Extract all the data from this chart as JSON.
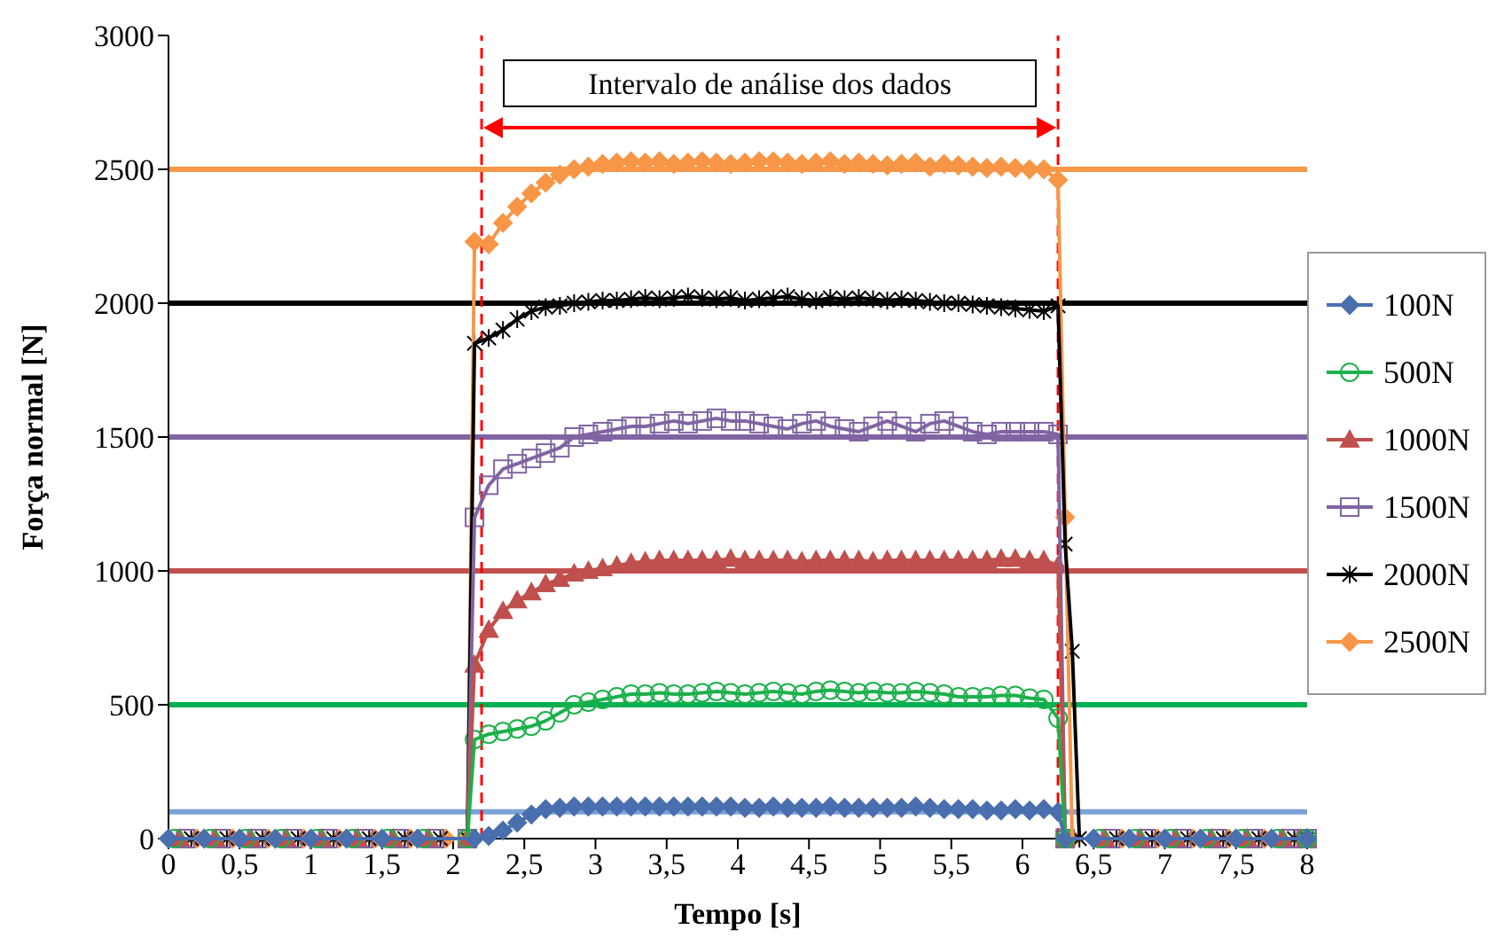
{
  "chart_data": {
    "type": "line",
    "xlabel": "Tempo [s]",
    "ylabel": "Força normal [N]",
    "annotations": [
      "Intervalo de análise dos dados"
    ],
    "series": [
      {
        "name": "100N",
        "color": "#4a6fae",
        "marker": "diamond",
        "x": [
          0,
          0.25,
          0.5,
          0.75,
          1,
          1.25,
          1.5,
          1.75,
          2.15,
          2.25,
          2.35,
          2.45,
          2.55,
          2.65,
          2.75,
          2.85,
          2.95,
          3.05,
          3.15,
          3.25,
          3.35,
          3.45,
          3.55,
          3.65,
          3.75,
          3.85,
          3.95,
          4.05,
          4.15,
          4.25,
          4.35,
          4.45,
          4.55,
          4.65,
          4.75,
          4.85,
          4.95,
          5.05,
          5.15,
          5.25,
          5.35,
          5.45,
          5.55,
          5.65,
          5.75,
          5.85,
          5.95,
          6.05,
          6.15,
          6.25,
          6.3,
          6.5,
          6.75,
          7,
          7.25,
          7.5,
          7.75,
          8
        ],
        "values": [
          0,
          0,
          0,
          0,
          0,
          0,
          0,
          0,
          0,
          10,
          30,
          60,
          90,
          110,
          115,
          120,
          120,
          120,
          120,
          120,
          120,
          120,
          120,
          120,
          120,
          120,
          120,
          115,
          115,
          120,
          115,
          115,
          115,
          120,
          115,
          115,
          115,
          115,
          115,
          120,
          115,
          110,
          110,
          110,
          105,
          105,
          110,
          105,
          110,
          100,
          0,
          0,
          0,
          0,
          0,
          0,
          0,
          0
        ]
      },
      {
        "name": "500N",
        "color": "#1db04a",
        "marker": "circle",
        "x": [
          0.04,
          0.29,
          0.54,
          0.79,
          1.04,
          1.29,
          1.54,
          1.79,
          2.1,
          2.15,
          2.25,
          2.35,
          2.45,
          2.55,
          2.65,
          2.75,
          2.85,
          2.95,
          3.05,
          3.15,
          3.25,
          3.35,
          3.45,
          3.55,
          3.65,
          3.75,
          3.85,
          3.95,
          4.05,
          4.15,
          4.25,
          4.35,
          4.45,
          4.55,
          4.65,
          4.75,
          4.85,
          4.95,
          5.05,
          5.15,
          5.25,
          5.35,
          5.45,
          5.55,
          5.65,
          5.75,
          5.85,
          5.95,
          6.05,
          6.15,
          6.25,
          6.3,
          6.54,
          6.79,
          7.04,
          7.29,
          7.54,
          7.79,
          8
        ],
        "values": [
          0,
          0,
          0,
          0,
          0,
          0,
          0,
          0,
          0,
          370,
          390,
          400,
          410,
          420,
          440,
          470,
          500,
          510,
          520,
          530,
          540,
          540,
          545,
          540,
          540,
          545,
          550,
          545,
          540,
          545,
          550,
          545,
          540,
          550,
          555,
          550,
          545,
          550,
          545,
          545,
          550,
          545,
          540,
          530,
          530,
          530,
          535,
          535,
          525,
          520,
          450,
          0,
          0,
          0,
          0,
          0,
          0,
          0,
          0
        ]
      },
      {
        "name": "1000N",
        "color": "#c0504d",
        "marker": "triangle",
        "x": [
          0.08,
          0.33,
          0.58,
          0.83,
          1.08,
          1.33,
          1.58,
          1.83,
          2.1,
          2.15,
          2.25,
          2.35,
          2.45,
          2.55,
          2.65,
          2.75,
          2.85,
          2.95,
          3.05,
          3.15,
          3.25,
          3.35,
          3.45,
          3.55,
          3.65,
          3.75,
          3.85,
          3.95,
          4.05,
          4.15,
          4.25,
          4.35,
          4.45,
          4.55,
          4.65,
          4.75,
          4.85,
          4.95,
          5.05,
          5.15,
          5.25,
          5.35,
          5.45,
          5.55,
          5.65,
          5.75,
          5.85,
          5.95,
          6.05,
          6.15,
          6.25,
          6.3,
          6.58,
          6.83,
          7.08,
          7.33,
          7.58,
          7.83,
          8
        ],
        "values": [
          0,
          0,
          0,
          0,
          0,
          0,
          0,
          0,
          0,
          650,
          780,
          850,
          890,
          920,
          950,
          970,
          990,
          1000,
          1010,
          1020,
          1030,
          1035,
          1040,
          1040,
          1040,
          1040,
          1040,
          1045,
          1040,
          1040,
          1040,
          1040,
          1035,
          1040,
          1040,
          1040,
          1040,
          1035,
          1040,
          1040,
          1040,
          1040,
          1040,
          1040,
          1040,
          1040,
          1045,
          1045,
          1040,
          1040,
          1020,
          0,
          0,
          0,
          0,
          0,
          0,
          0,
          0
        ]
      },
      {
        "name": "1500N",
        "color": "#8064a2",
        "marker": "square",
        "x": [
          0.12,
          0.37,
          0.62,
          0.87,
          1.12,
          1.37,
          1.62,
          1.87,
          2.1,
          2.15,
          2.25,
          2.35,
          2.45,
          2.55,
          2.65,
          2.75,
          2.85,
          2.95,
          3.05,
          3.15,
          3.25,
          3.35,
          3.45,
          3.55,
          3.65,
          3.75,
          3.85,
          3.95,
          4.05,
          4.15,
          4.25,
          4.35,
          4.45,
          4.55,
          4.65,
          4.75,
          4.85,
          4.95,
          5.05,
          5.15,
          5.25,
          5.35,
          5.45,
          5.55,
          5.65,
          5.75,
          5.85,
          5.95,
          6.05,
          6.15,
          6.25,
          6.3,
          6.62,
          6.87,
          7.12,
          7.37,
          7.62,
          7.87,
          8
        ],
        "values": [
          0,
          0,
          0,
          0,
          0,
          0,
          0,
          0,
          0,
          1200,
          1320,
          1380,
          1400,
          1420,
          1440,
          1460,
          1500,
          1510,
          1520,
          1530,
          1540,
          1540,
          1550,
          1560,
          1550,
          1560,
          1570,
          1560,
          1560,
          1550,
          1540,
          1530,
          1550,
          1560,
          1540,
          1530,
          1520,
          1540,
          1560,
          1540,
          1520,
          1550,
          1560,
          1540,
          1520,
          1510,
          1520,
          1520,
          1520,
          1520,
          1510,
          0,
          0,
          0,
          0,
          0,
          0,
          0,
          0
        ]
      },
      {
        "name": "2000N",
        "color": "#000000",
        "marker": "cross",
        "x": [
          0.16,
          0.41,
          0.66,
          0.91,
          1.16,
          1.41,
          1.66,
          1.91,
          2.1,
          2.15,
          2.25,
          2.35,
          2.45,
          2.55,
          2.65,
          2.75,
          2.85,
          2.95,
          3.05,
          3.15,
          3.25,
          3.35,
          3.45,
          3.55,
          3.65,
          3.75,
          3.85,
          3.95,
          4.05,
          4.15,
          4.25,
          4.35,
          4.45,
          4.55,
          4.65,
          4.75,
          4.85,
          4.95,
          5.05,
          5.15,
          5.25,
          5.35,
          5.45,
          5.55,
          5.65,
          5.75,
          5.85,
          5.95,
          6.05,
          6.15,
          6.25,
          6.3,
          6.35,
          6.4,
          6.66,
          6.91,
          7.16,
          7.41,
          7.66,
          7.91,
          8
        ],
        "values": [
          0,
          0,
          0,
          0,
          0,
          0,
          0,
          0,
          0,
          1850,
          1870,
          1900,
          1940,
          1970,
          1985,
          1990,
          2000,
          2005,
          2010,
          2010,
          2015,
          2020,
          2015,
          2020,
          2025,
          2020,
          2015,
          2020,
          2010,
          2015,
          2020,
          2025,
          2015,
          2010,
          2020,
          2015,
          2020,
          2015,
          2010,
          2015,
          2010,
          2005,
          2000,
          2000,
          1995,
          1990,
          1985,
          1980,
          1975,
          1970,
          1990,
          1100,
          700,
          0,
          0,
          0,
          0,
          0,
          0,
          0,
          0
        ]
      },
      {
        "name": "2500N",
        "color": "#f79646",
        "marker": "diamond",
        "x": [
          0.2,
          0.45,
          0.7,
          0.95,
          1.2,
          1.45,
          1.7,
          1.95,
          2.1,
          2.15,
          2.25,
          2.35,
          2.45,
          2.55,
          2.65,
          2.75,
          2.85,
          2.95,
          3.05,
          3.15,
          3.25,
          3.35,
          3.45,
          3.55,
          3.65,
          3.75,
          3.85,
          3.95,
          4.05,
          4.15,
          4.25,
          4.35,
          4.45,
          4.55,
          4.65,
          4.75,
          4.85,
          4.95,
          5.05,
          5.15,
          5.25,
          5.35,
          5.45,
          5.55,
          5.65,
          5.75,
          5.85,
          5.95,
          6.05,
          6.15,
          6.25,
          6.3,
          6.35,
          6.7,
          6.95,
          7.2,
          7.45,
          7.7,
          7.95,
          8
        ],
        "values": [
          0,
          0,
          0,
          0,
          0,
          0,
          0,
          0,
          0,
          2230,
          2220,
          2300,
          2360,
          2410,
          2450,
          2480,
          2500,
          2510,
          2520,
          2525,
          2530,
          2525,
          2530,
          2520,
          2525,
          2530,
          2525,
          2520,
          2525,
          2530,
          2530,
          2525,
          2520,
          2525,
          2530,
          2520,
          2525,
          2520,
          2515,
          2520,
          2525,
          2510,
          2520,
          2515,
          2510,
          2505,
          2510,
          2505,
          2500,
          2500,
          2460,
          1200,
          0,
          0,
          0,
          0,
          0,
          0,
          0,
          0
        ]
      }
    ],
    "xlim": [
      0,
      8
    ],
    "xticks": [
      0,
      {
        "value": 0.5,
        "label": "0,5"
      },
      1,
      {
        "value": 1.5,
        "label": "1,5"
      },
      2,
      {
        "value": 2.5,
        "label": "2,5"
      },
      3,
      {
        "value": 3.5,
        "label": "3,5"
      },
      4,
      {
        "value": 4.5,
        "label": "4,5"
      },
      5,
      {
        "value": 5.5,
        "label": "5,5"
      },
      6,
      {
        "value": 6.5,
        "label": "6,5"
      },
      7,
      {
        "value": 7.5,
        "label": "7,5"
      },
      8
    ],
    "ylim": [
      0,
      3000
    ],
    "yticks": [
      0,
      500,
      1000,
      1500,
      2000,
      2500,
      3000
    ],
    "ref_lines": [
      {
        "axis": "y",
        "value": 100,
        "color": "#7ba3d6"
      },
      {
        "axis": "y",
        "value": 500,
        "color": "#00b050"
      },
      {
        "axis": "y",
        "value": 1000,
        "color": "#c0504d"
      },
      {
        "axis": "y",
        "value": 1500,
        "color": "#8064a2"
      },
      {
        "axis": "y",
        "value": 2000,
        "color": "#000000"
      },
      {
        "axis": "y",
        "value": 2500,
        "color": "#f79646"
      },
      {
        "axis": "x",
        "value": 2.2,
        "color": "#ff0000",
        "line_style": "dashed"
      },
      {
        "axis": "x",
        "value": 6.25,
        "color": "#ff0000",
        "line_style": "dashed"
      }
    ],
    "legend": "right",
    "grid": false
  }
}
